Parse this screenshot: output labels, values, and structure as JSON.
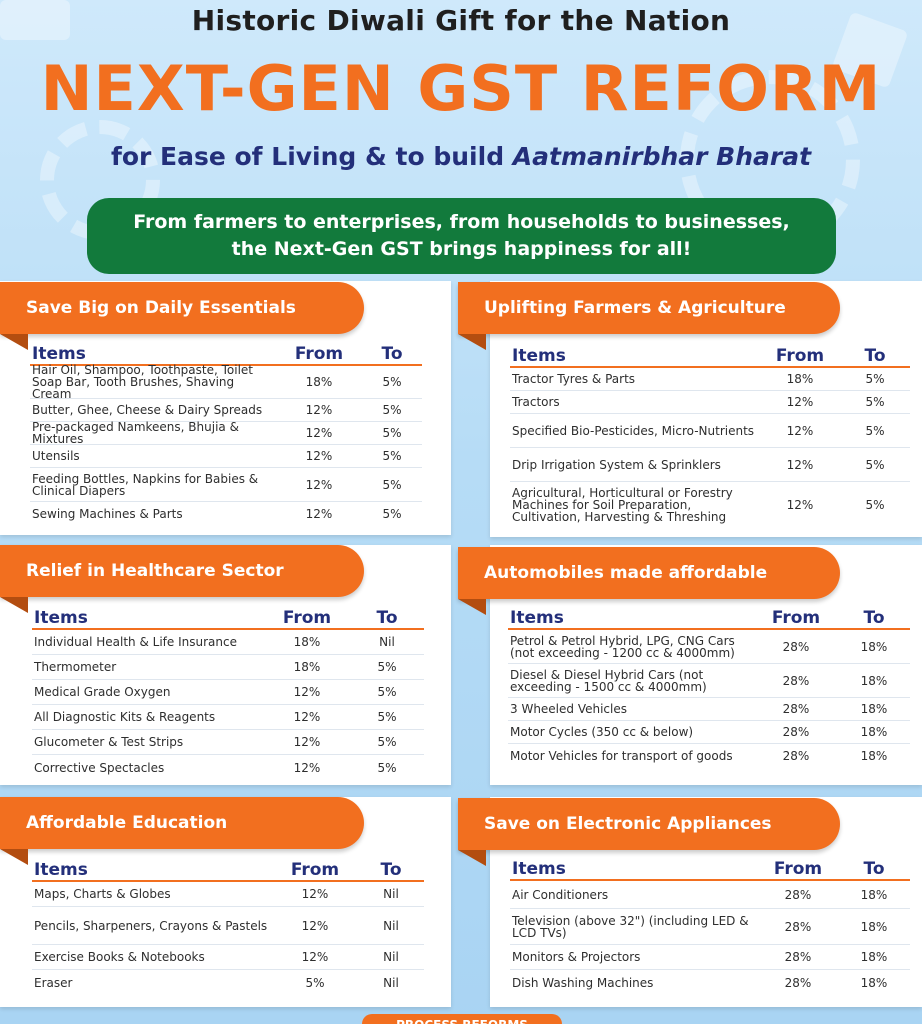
{
  "header": {
    "top_title": "Historic Diwali Gift for the Nation",
    "main_title": "NEXT-GEN GST REFORM",
    "subtitle_plain": "for Ease of Living & to build ",
    "subtitle_italic": "Aatmanirbhar Bharat",
    "banner_line1": "From farmers to enterprises, from households to businesses,",
    "banner_line2": "the Next-Gen GST brings happiness for all!"
  },
  "colors": {
    "accent_orange": "#f26f1f",
    "banner_green": "#127a3c",
    "heading_navy": "#232f7a",
    "background_blue": "#b6dcf6"
  },
  "sections": {
    "essentials": {
      "title": "Save Big on Daily Essentials",
      "col_items": "Items",
      "col_from": "From",
      "col_to": "To",
      "rows": [
        {
          "item": "Hair Oil, Shampoo, Toothpaste, Toilet Soap Bar, Tooth Brushes, Shaving Cream",
          "from": "18%",
          "to": "5%"
        },
        {
          "item": "Butter, Ghee, Cheese & Dairy Spreads",
          "from": "12%",
          "to": "5%"
        },
        {
          "item": "Pre-packaged Namkeens, Bhujia & Mixtures",
          "from": "12%",
          "to": "5%"
        },
        {
          "item": "Utensils",
          "from": "12%",
          "to": "5%"
        },
        {
          "item": "Feeding Bottles, Napkins for Babies & Clinical Diapers",
          "from": "12%",
          "to": "5%"
        },
        {
          "item": "Sewing Machines & Parts",
          "from": "12%",
          "to": "5%"
        }
      ]
    },
    "farmers": {
      "title": "Uplifting Farmers & Agriculture",
      "col_items": "Items",
      "col_from": "From",
      "col_to": "To",
      "rows": [
        {
          "item": "Tractor Tyres & Parts",
          "from": "18%",
          "to": "5%"
        },
        {
          "item": "Tractors",
          "from": "12%",
          "to": "5%"
        },
        {
          "item": "Specified Bio-Pesticides, Micro-Nutrients",
          "from": "12%",
          "to": "5%"
        },
        {
          "item": "Drip Irrigation System & Sprinklers",
          "from": "12%",
          "to": "5%"
        },
        {
          "item": "Agricultural, Horticultural or Forestry Machines for Soil Preparation, Cultivation, Harvesting & Threshing",
          "from": "12%",
          "to": "5%"
        }
      ]
    },
    "healthcare": {
      "title": "Relief in Healthcare Sector",
      "col_items": "Items",
      "col_from": "From",
      "col_to": "To",
      "rows": [
        {
          "item": "Individual Health & Life Insurance",
          "from": "18%",
          "to": "Nil"
        },
        {
          "item": "Thermometer",
          "from": "18%",
          "to": "5%"
        },
        {
          "item": "Medical Grade Oxygen",
          "from": "12%",
          "to": "5%"
        },
        {
          "item": "All Diagnostic Kits & Reagents",
          "from": "12%",
          "to": "5%"
        },
        {
          "item": "Glucometer & Test Strips",
          "from": "12%",
          "to": "5%"
        },
        {
          "item": "Corrective Spectacles",
          "from": "12%",
          "to": "5%"
        }
      ]
    },
    "automobiles": {
      "title": "Automobiles made affordable",
      "col_items": "Items",
      "col_from": "From",
      "col_to": "To",
      "rows": [
        {
          "item": "Petrol & Petrol Hybrid, LPG, CNG Cars (not exceeding - 1200 cc & 4000mm)",
          "from": "28%",
          "to": "18%"
        },
        {
          "item": "Diesel & Diesel Hybrid Cars (not exceeding - 1500 cc & 4000mm)",
          "from": "28%",
          "to": "18%"
        },
        {
          "item": "3 Wheeled Vehicles",
          "from": "28%",
          "to": "18%"
        },
        {
          "item": "Motor Cycles (350 cc & below)",
          "from": "28%",
          "to": "18%"
        },
        {
          "item": "Motor Vehicles for transport of goods",
          "from": "28%",
          "to": "18%"
        }
      ]
    },
    "education": {
      "title": "Affordable Education",
      "col_items": "Items",
      "col_from": "From",
      "col_to": "To",
      "rows": [
        {
          "item": "Maps, Charts & Globes",
          "from": "12%",
          "to": "Nil"
        },
        {
          "item": "Pencils, Sharpeners, Crayons & Pastels",
          "from": "12%",
          "to": "Nil"
        },
        {
          "item": "Exercise Books & Notebooks",
          "from": "12%",
          "to": "Nil"
        },
        {
          "item": "Eraser",
          "from": "5%",
          "to": "Nil"
        }
      ]
    },
    "electronics": {
      "title": "Save on Electronic Appliances",
      "col_items": "Items",
      "col_from": "From",
      "col_to": "To",
      "rows": [
        {
          "item": "Air Conditioners",
          "from": "28%",
          "to": "18%"
        },
        {
          "item": "Television (above 32\") (including LED & LCD TVs)",
          "from": "28%",
          "to": "18%"
        },
        {
          "item": "Monitors & Projectors",
          "from": "28%",
          "to": "18%"
        },
        {
          "item": "Dish Washing Machines",
          "from": "28%",
          "to": "18%"
        }
      ]
    }
  },
  "footer": {
    "pill_text": "PROCESS REFORMS"
  }
}
